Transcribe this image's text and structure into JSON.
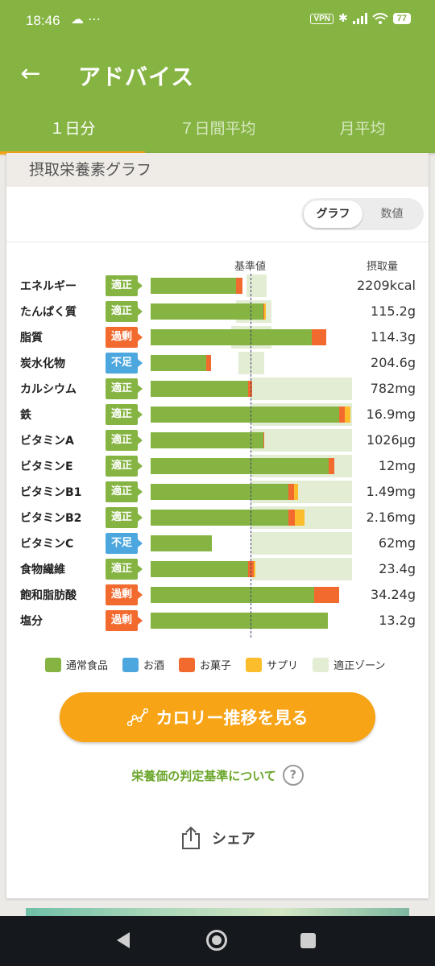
{
  "status_bar": {
    "time": "18:46",
    "left_icons": "☁ ⋯",
    "vpn": "VPN",
    "battery": "77"
  },
  "app_bar": {
    "title": "アドバイス"
  },
  "tabs": [
    {
      "label": "１日分"
    },
    {
      "label": "７日間平均"
    },
    {
      "label": "月平均"
    }
  ],
  "section": {
    "title": "摂取栄養素グラフ"
  },
  "view_toggle": {
    "graph": "グラフ",
    "numeric": "数値"
  },
  "columns": {
    "baseline": "基準値",
    "intake": "摂取量"
  },
  "colors": {
    "normal_food": "#86b443",
    "alcohol": "#4da7df",
    "snack": "#f26a2e",
    "supplement": "#fbbd2b",
    "proper_zone": "#e2edd3",
    "accent": "#f7a416"
  },
  "chart_data": {
    "type": "bar",
    "orientation": "horizontal",
    "baseline_label": "基準値",
    "categories": [
      "エネルギー",
      "たんぱく質",
      "脂質",
      "炭水化物",
      "カルシウム",
      "鉄",
      "ビタミンA",
      "ビタミンE",
      "ビタミンB1",
      "ビタミンB2",
      "ビタミンC",
      "食物繊維",
      "飽和脂肪酸",
      "塩分"
    ],
    "status": [
      "適正",
      "適正",
      "過剰",
      "不足",
      "適正",
      "適正",
      "適正",
      "適正",
      "適正",
      "適正",
      "不足",
      "適正",
      "過剰",
      "過剰"
    ],
    "status_kind": [
      "ok",
      "ok",
      "over",
      "under",
      "ok",
      "ok",
      "ok",
      "ok",
      "ok",
      "ok",
      "under",
      "ok",
      "over",
      "over"
    ],
    "amounts": [
      "2209kcal",
      "115.2g",
      "114.3g",
      "204.6g",
      "782mg",
      "16.9mg",
      "1026μg",
      "12mg",
      "1.49mg",
      "2.16mg",
      "62mg",
      "23.4g",
      "34.24g",
      "13.2g"
    ],
    "note": "Values are percent of the baseline (基準値 = 100); stacked by source.",
    "series": [
      {
        "name": "通常食品",
        "values": [
          85,
          112,
          160,
          55,
          97,
          187,
          112,
          177,
          137,
          137,
          61,
          97,
          162,
          176
        ]
      },
      {
        "name": "お酒",
        "values": [
          0,
          0,
          0,
          0,
          0,
          0,
          0,
          0,
          0,
          0,
          0,
          0,
          0,
          0
        ]
      },
      {
        "name": "お菓子",
        "values": [
          6,
          1,
          14,
          5,
          4,
          6,
          1,
          5,
          5,
          6,
          0,
          5,
          25,
          0
        ]
      },
      {
        "name": "サプリ",
        "values": [
          0,
          1,
          0,
          0,
          0,
          5,
          0,
          0,
          4,
          10,
          0,
          2,
          0,
          0
        ]
      }
    ],
    "proper_zone": [
      [
        95,
        115
      ],
      [
        85,
        120
      ],
      [
        80,
        120
      ],
      [
        87,
        113
      ],
      [
        100,
        200
      ],
      [
        100,
        200
      ],
      [
        100,
        200
      ],
      [
        100,
        200
      ],
      [
        100,
        200
      ],
      [
        100,
        200
      ],
      [
        100,
        200
      ],
      [
        100,
        200
      ],
      null,
      null
    ],
    "xlim": [
      0,
      200
    ]
  },
  "legend": [
    {
      "label": "通常食品",
      "color": "#86b443"
    },
    {
      "label": "お酒",
      "color": "#4da7df"
    },
    {
      "label": "お菓子",
      "color": "#f26a2e"
    },
    {
      "label": "サプリ",
      "color": "#fbbd2b"
    },
    {
      "label": "適正ゾーン",
      "color": "#e2edd3"
    }
  ],
  "actions": {
    "calorie_button": "カロリー推移を見る",
    "criteria_link": "栄養価の判定基準について",
    "help": "?",
    "share": "シェア"
  }
}
